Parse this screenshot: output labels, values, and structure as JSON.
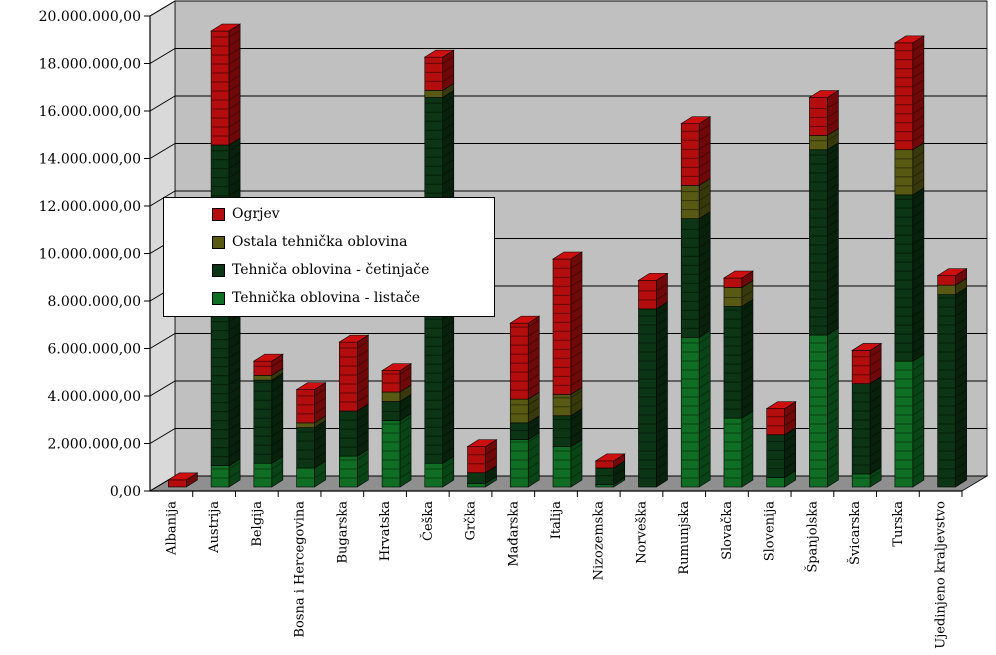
{
  "chart_data": {
    "type": "bar",
    "stacked": true,
    "three_d": true,
    "categories": [
      "Albanija",
      "Austrija",
      "Belgija",
      "Bosna i Hercegovina",
      "Bugarska",
      "Hrvatska",
      "Češka",
      "Grčka",
      "Mađarska",
      "Italija",
      "Nizozemska",
      "Norveška",
      "Rumunjska",
      "Slovačka",
      "Slovenija",
      "Španjolska",
      "Švicarska",
      "Turska",
      "Ujedinjeno kraljevstvo"
    ],
    "series": [
      {
        "name": "Tehnička oblovina - listače",
        "color": "#0f6e24",
        "values": [
          0,
          900000,
          1000000,
          800000,
          1300000,
          2800000,
          1000000,
          150000,
          2000000,
          1700000,
          100000,
          0,
          6300000,
          2900000,
          400000,
          6400000,
          550000,
          5300000,
          0
        ]
      },
      {
        "name": "Tehniča oblovina - četinjače",
        "color": "#0b3514",
        "values": [
          0,
          13500000,
          3500000,
          1700000,
          1900000,
          800000,
          15400000,
          450000,
          700000,
          1300000,
          700000,
          7500000,
          5000000,
          4700000,
          1800000,
          7800000,
          3800000,
          7000000,
          8100000
        ]
      },
      {
        "name": "Ostala tehnička oblovina",
        "color": "#585a14",
        "values": [
          0,
          0,
          200000,
          200000,
          0,
          400000,
          300000,
          0,
          1000000,
          900000,
          0,
          0,
          1400000,
          800000,
          0,
          600000,
          0,
          1900000,
          400000
        ]
      },
      {
        "name": "Ogrjev",
        "color": "#b30d0d",
        "values": [
          300000,
          4800000,
          600000,
          1400000,
          2900000,
          900000,
          1400000,
          1100000,
          3200000,
          5700000,
          300000,
          1200000,
          2600000,
          400000,
          1100000,
          1600000,
          1400000,
          4500000,
          400000
        ]
      }
    ],
    "legend_order": [
      "Ogrjev",
      "Ostala tehnička oblovina",
      "Tehniča oblovina - četinjače",
      "Tehnička oblovina - listače"
    ],
    "yticks": [
      "0,00",
      "2.000.000,00",
      "4.000.000,00",
      "6.000.000,00",
      "8.000.000,00",
      "10.000.000,00",
      "12.000.000,00",
      "14.000.000,00",
      "16.000.000,00",
      "18.000.000,00",
      "20.000.000,00"
    ],
    "ylim": [
      0,
      20000000
    ],
    "grid": true,
    "legend_position": "left",
    "title": "",
    "xlabel": "",
    "ylabel": ""
  },
  "colors": {
    "wall": "#c0c0c0",
    "floor": "#8f8f8f",
    "grid": "#000000"
  }
}
